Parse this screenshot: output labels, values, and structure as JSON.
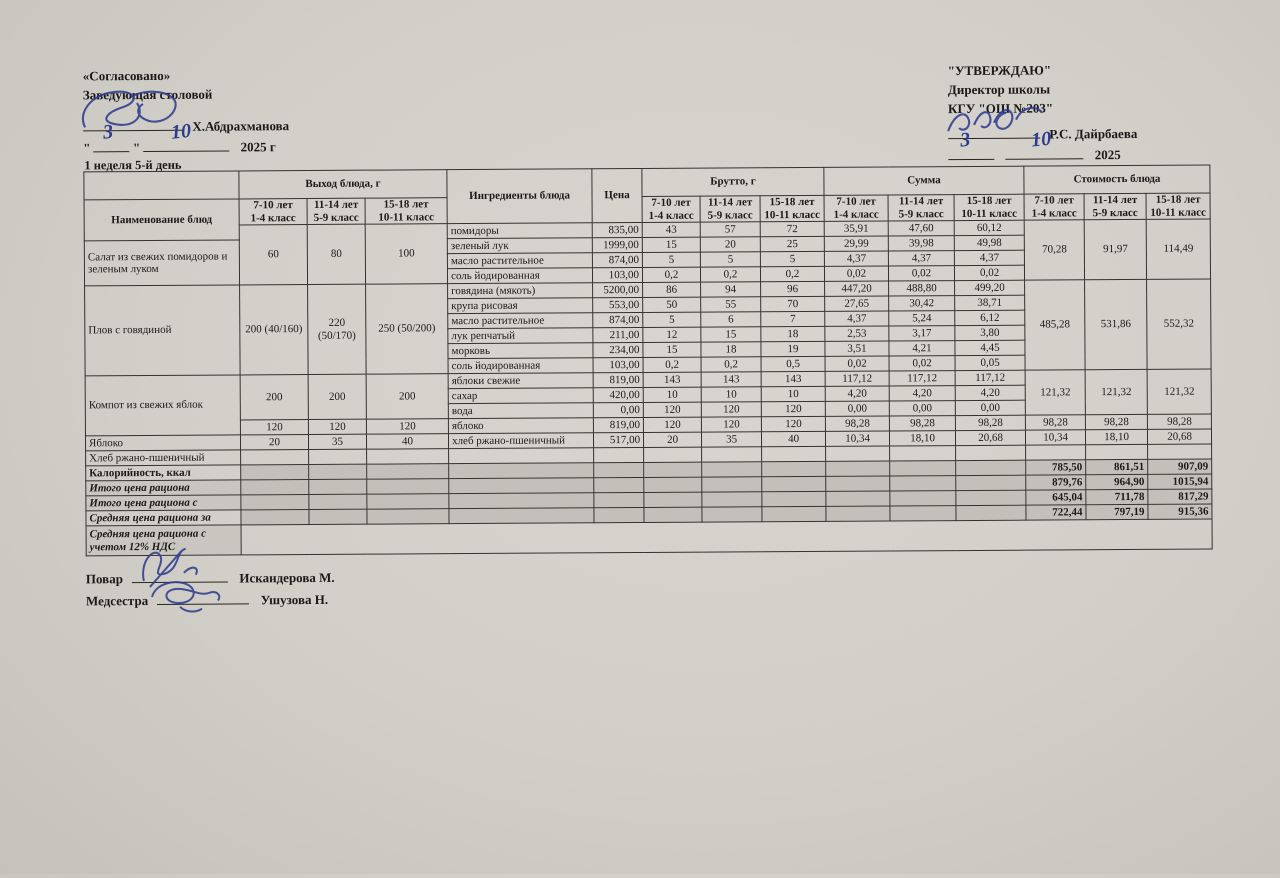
{
  "approved_left": {
    "title": "«Согласовано»",
    "subtitle": "Заведующая столовой",
    "name": "Х.Абдрахманова",
    "day": "3",
    "month": "10",
    "year_label": "2025 г",
    "quote": "\""
  },
  "approved_right": {
    "title": "\"УТВЕРЖДАЮ\"",
    "subtitle": "Директор школы",
    "org": "КГУ \"ОШ №203\"",
    "name": "Р.С. Дайрбаева",
    "day": "3",
    "month": "10",
    "year_label": "2025"
  },
  "week_label": "1 неделя 5-й день",
  "signatures": {
    "cook_label": "Повар",
    "cook_name": "Искандерова М.",
    "nurse_label": "Медсестра",
    "nurse_name": "Ушузова Н."
  },
  "table": {
    "rows": [
      [
        {
          "t": "",
          "c": "nb"
        },
        {
          "t": "Выход блюда, г",
          "cs": 3,
          "c": "h"
        },
        {
          "t": "Ингредиенты блюда",
          "rs": 2,
          "c": "h"
        },
        {
          "t": "Цена",
          "rs": 2,
          "c": "h"
        },
        {
          "t": "Брутто, г",
          "cs": 3,
          "c": "h"
        },
        {
          "t": "Сумма",
          "cs": 3,
          "c": "h"
        },
        {
          "t": "Стоимость блюда",
          "cs": 3,
          "c": "h"
        }
      ],
      [
        {
          "t": "Наименование блюд",
          "rs": 2,
          "c": "h"
        },
        {
          "t": "7-10 лет\n1-4 класс",
          "c": "age"
        },
        {
          "t": "11-14 лет\n5-9 класс",
          "c": "age"
        },
        {
          "t": "15-18 лет\n10-11 класс",
          "c": "age"
        },
        {
          "t": "7-10 лет\n1-4 класс",
          "c": "age"
        },
        {
          "t": "11-14 лет\n5-9 класс",
          "c": "age"
        },
        {
          "t": "15-18 лет\n10-11 класс",
          "c": "age"
        },
        {
          "t": "7-10 лет\n1-4 класс",
          "c": "age"
        },
        {
          "t": "11-14 лет\n5-9 класс",
          "c": "age"
        },
        {
          "t": "15-18 лет\n10-11 класс",
          "c": "age"
        },
        {
          "t": "7-10 лет\n1-4 класс",
          "c": "age"
        },
        {
          "t": "11-14 лет\n5-9 класс",
          "c": "age"
        },
        {
          "t": "15-18 лет\n10-11 класс",
          "c": "age"
        }
      ],
      [
        {
          "t": "60",
          "rs": 4,
          "c": "ct tp"
        },
        {
          "t": "80",
          "rs": 4,
          "c": "ct tp"
        },
        {
          "t": "100",
          "rs": 4,
          "c": "ct tp"
        },
        {
          "t": "помидоры",
          "c": "in"
        },
        {
          "t": "835,00",
          "c": "pr"
        },
        {
          "t": "43",
          "c": "ct"
        },
        {
          "t": "57",
          "c": "ct"
        },
        {
          "t": "72",
          "c": "ct"
        },
        {
          "t": "35,91",
          "c": "ct"
        },
        {
          "t": "47,60",
          "c": "ct"
        },
        {
          "t": "60,12",
          "c": "ct"
        },
        {
          "t": "70,28",
          "rs": 4,
          "c": "ct tp"
        },
        {
          "t": "91,97",
          "rs": 4,
          "c": "ct tp"
        },
        {
          "t": "114,49",
          "rs": 4,
          "c": "ct tp"
        }
      ],
      [
        {
          "t": "Салат из свежих помидоров и зеленым луком",
          "rs": 3,
          "c": "nm"
        },
        {
          "t": "зеленый лук",
          "c": "in"
        },
        {
          "t": "1999,00",
          "c": "pr"
        },
        {
          "t": "15",
          "c": "ct"
        },
        {
          "t": "20",
          "c": "ct"
        },
        {
          "t": "25",
          "c": "ct"
        },
        {
          "t": "29,99",
          "c": "ct"
        },
        {
          "t": "39,98",
          "c": "ct"
        },
        {
          "t": "49,98",
          "c": "ct"
        }
      ],
      [
        {
          "t": "масло растительное",
          "c": "in"
        },
        {
          "t": "874,00",
          "c": "pr"
        },
        {
          "t": "5",
          "c": "ct"
        },
        {
          "t": "5",
          "c": "ct"
        },
        {
          "t": "5",
          "c": "ct"
        },
        {
          "t": "4,37",
          "c": "ct"
        },
        {
          "t": "4,37",
          "c": "ct"
        },
        {
          "t": "4,37",
          "c": "ct"
        }
      ],
      [
        {
          "t": "соль йодированная",
          "c": "in"
        },
        {
          "t": "103,00",
          "c": "pr"
        },
        {
          "t": "0,2",
          "c": "ct"
        },
        {
          "t": "0,2",
          "c": "ct"
        },
        {
          "t": "0,2",
          "c": "ct"
        },
        {
          "t": "0,02",
          "c": "ct"
        },
        {
          "t": "0,02",
          "c": "ct"
        },
        {
          "t": "0,02",
          "c": "ct"
        }
      ],
      [
        {
          "t": "Плов с говядиной",
          "rs": 6,
          "c": "nm"
        },
        {
          "t": "200 (40/160)",
          "rs": 6,
          "c": "ct tp"
        },
        {
          "t": "220 (50/170)",
          "rs": 6,
          "c": "ct tp"
        },
        {
          "t": "250 (50/200)",
          "rs": 6,
          "c": "ct tp"
        },
        {
          "t": "говядина (мякоть)",
          "c": "in"
        },
        {
          "t": "5200,00",
          "c": "pr"
        },
        {
          "t": "86",
          "c": "ct"
        },
        {
          "t": "94",
          "c": "ct"
        },
        {
          "t": "96",
          "c": "ct"
        },
        {
          "t": "447,20",
          "c": "ct"
        },
        {
          "t": "488,80",
          "c": "ct"
        },
        {
          "t": "499,20",
          "c": "ct"
        },
        {
          "t": "485,28",
          "rs": 6,
          "c": "ct tp"
        },
        {
          "t": "531,86",
          "rs": 6,
          "c": "ct tp"
        },
        {
          "t": "552,32",
          "rs": 6,
          "c": "ct tp"
        }
      ],
      [
        {
          "t": "крупа рисовая",
          "c": "in"
        },
        {
          "t": "553,00",
          "c": "pr"
        },
        {
          "t": "50",
          "c": "ct"
        },
        {
          "t": "55",
          "c": "ct"
        },
        {
          "t": "70",
          "c": "ct"
        },
        {
          "t": "27,65",
          "c": "ct"
        },
        {
          "t": "30,42",
          "c": "ct"
        },
        {
          "t": "38,71",
          "c": "ct"
        }
      ],
      [
        {
          "t": "масло растительное",
          "c": "in"
        },
        {
          "t": "874,00",
          "c": "pr"
        },
        {
          "t": "5",
          "c": "ct"
        },
        {
          "t": "6",
          "c": "ct"
        },
        {
          "t": "7",
          "c": "ct"
        },
        {
          "t": "4,37",
          "c": "ct"
        },
        {
          "t": "5,24",
          "c": "ct"
        },
        {
          "t": "6,12",
          "c": "ct"
        }
      ],
      [
        {
          "t": "лук репчатый",
          "c": "in"
        },
        {
          "t": "211,00",
          "c": "pr"
        },
        {
          "t": "12",
          "c": "ct"
        },
        {
          "t": "15",
          "c": "ct"
        },
        {
          "t": "18",
          "c": "ct"
        },
        {
          "t": "2,53",
          "c": "ct"
        },
        {
          "t": "3,17",
          "c": "ct"
        },
        {
          "t": "3,80",
          "c": "ct"
        }
      ],
      [
        {
          "t": "морковь",
          "c": "in"
        },
        {
          "t": "234,00",
          "c": "pr"
        },
        {
          "t": "15",
          "c": "ct"
        },
        {
          "t": "18",
          "c": "ct"
        },
        {
          "t": "19",
          "c": "ct"
        },
        {
          "t": "3,51",
          "c": "ct"
        },
        {
          "t": "4,21",
          "c": "ct"
        },
        {
          "t": "4,45",
          "c": "ct"
        }
      ],
      [
        {
          "t": "соль йодированная",
          "c": "in"
        },
        {
          "t": "103,00",
          "c": "pr"
        },
        {
          "t": "0,2",
          "c": "ct"
        },
        {
          "t": "0,2",
          "c": "ct"
        },
        {
          "t": "0,5",
          "c": "ct"
        },
        {
          "t": "0,02",
          "c": "ct"
        },
        {
          "t": "0,02",
          "c": "ct"
        },
        {
          "t": "0,05",
          "c": "ct"
        }
      ],
      [
        {
          "t": "Компот из свежих яблок",
          "rs": 4,
          "c": "nm"
        },
        {
          "t": "200",
          "rs": 3,
          "c": "ct tp"
        },
        {
          "t": "200",
          "rs": 3,
          "c": "ct tp"
        },
        {
          "t": "200",
          "rs": 3,
          "c": "ct tp"
        },
        {
          "t": "яблоки свежие",
          "c": "in"
        },
        {
          "t": "819,00",
          "c": "pr"
        },
        {
          "t": "143",
          "c": "ct"
        },
        {
          "t": "143",
          "c": "ct"
        },
        {
          "t": "143",
          "c": "ct"
        },
        {
          "t": "117,12",
          "c": "ct"
        },
        {
          "t": "117,12",
          "c": "ct"
        },
        {
          "t": "117,12",
          "c": "ct"
        },
        {
          "t": "121,32",
          "rs": 3,
          "c": "ct tp"
        },
        {
          "t": "121,32",
          "rs": 3,
          "c": "ct tp"
        },
        {
          "t": "121,32",
          "rs": 3,
          "c": "ct tp"
        }
      ],
      [
        {
          "t": "сахар",
          "c": "in"
        },
        {
          "t": "420,00",
          "c": "pr"
        },
        {
          "t": "10",
          "c": "ct"
        },
        {
          "t": "10",
          "c": "ct"
        },
        {
          "t": "10",
          "c": "ct"
        },
        {
          "t": "4,20",
          "c": "ct"
        },
        {
          "t": "4,20",
          "c": "ct"
        },
        {
          "t": "4,20",
          "c": "ct"
        }
      ],
      [
        {
          "t": "вода",
          "c": "in"
        },
        {
          "t": "0,00",
          "c": "pr"
        },
        {
          "t": "120",
          "c": "ct"
        },
        {
          "t": "120",
          "c": "ct"
        },
        {
          "t": "120",
          "c": "ct"
        },
        {
          "t": "0,00",
          "c": "ct"
        },
        {
          "t": "0,00",
          "c": "ct"
        },
        {
          "t": "0,00",
          "c": "ct"
        }
      ],
      [
        {
          "t": "120",
          "c": "ct"
        },
        {
          "t": "120",
          "c": "ct"
        },
        {
          "t": "120",
          "c": "ct"
        },
        {
          "t": "яблоко",
          "c": "in"
        },
        {
          "t": "819,00",
          "c": "pr"
        },
        {
          "t": "120",
          "c": "ct"
        },
        {
          "t": "120",
          "c": "ct"
        },
        {
          "t": "120",
          "c": "ct"
        },
        {
          "t": "98,28",
          "c": "ct"
        },
        {
          "t": "98,28",
          "c": "ct"
        },
        {
          "t": "98,28",
          "c": "ct"
        },
        {
          "t": "98,28",
          "c": "ct"
        },
        {
          "t": "98,28",
          "c": "ct"
        },
        {
          "t": "98,28",
          "c": "ct"
        }
      ],
      [
        {
          "t": "Яблоко",
          "c": "nm"
        },
        {
          "t": "20",
          "c": "ct"
        },
        {
          "t": "35",
          "c": "ct"
        },
        {
          "t": "40",
          "c": "ct"
        },
        {
          "t": "хлеб ржано-пшеничный",
          "c": "in"
        },
        {
          "t": "517,00",
          "c": "pr"
        },
        {
          "t": "20",
          "c": "ct"
        },
        {
          "t": "35",
          "c": "ct"
        },
        {
          "t": "40",
          "c": "ct"
        },
        {
          "t": "10,34",
          "c": "ct"
        },
        {
          "t": "18,10",
          "c": "ct"
        },
        {
          "t": "20,68",
          "c": "ct"
        },
        {
          "t": "10,34",
          "c": "ct"
        },
        {
          "t": "18,10",
          "c": "ct"
        },
        {
          "t": "20,68",
          "c": "ct"
        }
      ],
      [
        {
          "t": "Хлеб ржано-пшеничный",
          "c": "nm"
        },
        {
          "t": ""
        },
        {
          "t": ""
        },
        {
          "t": ""
        },
        {
          "t": ""
        },
        {
          "t": ""
        },
        {
          "t": ""
        },
        {
          "t": ""
        },
        {
          "t": ""
        },
        {
          "t": ""
        },
        {
          "t": ""
        },
        {
          "t": ""
        },
        {
          "t": ""
        },
        {
          "t": ""
        },
        {
          "t": ""
        }
      ],
      [
        {
          "t": "Калорийность, ккал",
          "c": "nm b"
        },
        {
          "t": "",
          "c": "sh"
        },
        {
          "t": "",
          "c": "sh"
        },
        {
          "t": "",
          "c": "sh"
        },
        {
          "t": "",
          "c": "sh"
        },
        {
          "t": "",
          "c": "sh"
        },
        {
          "t": "",
          "c": "sh"
        },
        {
          "t": "",
          "c": "sh"
        },
        {
          "t": "",
          "c": "sh"
        },
        {
          "t": "",
          "c": "sh"
        },
        {
          "t": "",
          "c": "sh"
        },
        {
          "t": "",
          "c": "sh"
        },
        {
          "t": "785,50",
          "c": "rt sh"
        },
        {
          "t": "861,51",
          "c": "rt sh"
        },
        {
          "t": "907,09",
          "c": "rt sh"
        }
      ],
      [
        {
          "t": "Итого цена рациона",
          "c": "nm bi shl"
        },
        {
          "t": "",
          "c": "sh"
        },
        {
          "t": "",
          "c": "sh"
        },
        {
          "t": "",
          "c": "sh"
        },
        {
          "t": "",
          "c": "sh"
        },
        {
          "t": "",
          "c": "sh"
        },
        {
          "t": "",
          "c": "sh"
        },
        {
          "t": "",
          "c": "sh"
        },
        {
          "t": "",
          "c": "sh"
        },
        {
          "t": "",
          "c": "sh"
        },
        {
          "t": "",
          "c": "sh"
        },
        {
          "t": "",
          "c": "sh"
        },
        {
          "t": "879,76",
          "c": "rt sh"
        },
        {
          "t": "964,90",
          "c": "rt sh"
        },
        {
          "t": "1015,94",
          "c": "rt sh"
        }
      ],
      [
        {
          "t": "Итого цена рациона с",
          "c": "nm bi shl"
        },
        {
          "t": "",
          "c": "sh"
        },
        {
          "t": "",
          "c": "sh"
        },
        {
          "t": "",
          "c": "sh"
        },
        {
          "t": "",
          "c": "sh"
        },
        {
          "t": "",
          "c": "sh"
        },
        {
          "t": "",
          "c": "sh"
        },
        {
          "t": "",
          "c": "sh"
        },
        {
          "t": "",
          "c": "sh"
        },
        {
          "t": "",
          "c": "sh"
        },
        {
          "t": "",
          "c": "sh"
        },
        {
          "t": "",
          "c": "sh"
        },
        {
          "t": "645,04",
          "c": "rt sh"
        },
        {
          "t": "711,78",
          "c": "rt sh"
        },
        {
          "t": "817,29",
          "c": "rt sh"
        }
      ],
      [
        {
          "t": "Средняя цена рациона за",
          "c": "nm bi"
        },
        {
          "t": "",
          "c": "sh"
        },
        {
          "t": "",
          "c": "sh"
        },
        {
          "t": "",
          "c": "sh"
        },
        {
          "t": "",
          "c": "sh"
        },
        {
          "t": "",
          "c": "sh"
        },
        {
          "t": "",
          "c": "sh"
        },
        {
          "t": "",
          "c": "sh"
        },
        {
          "t": "",
          "c": "sh"
        },
        {
          "t": "",
          "c": "sh"
        },
        {
          "t": "",
          "c": "sh"
        },
        {
          "t": "",
          "c": "sh"
        },
        {
          "t": "722,44",
          "c": "rt sh"
        },
        {
          "t": "797,19",
          "c": "rt sh"
        },
        {
          "t": "915,36",
          "c": "rt sh"
        }
      ],
      [
        {
          "t": "Средняя цена рациона с учетом 12% НДС",
          "c": "nm bi shl"
        },
        {
          "t": "",
          "cs": 14,
          "c": "nb"
        }
      ]
    ]
  }
}
